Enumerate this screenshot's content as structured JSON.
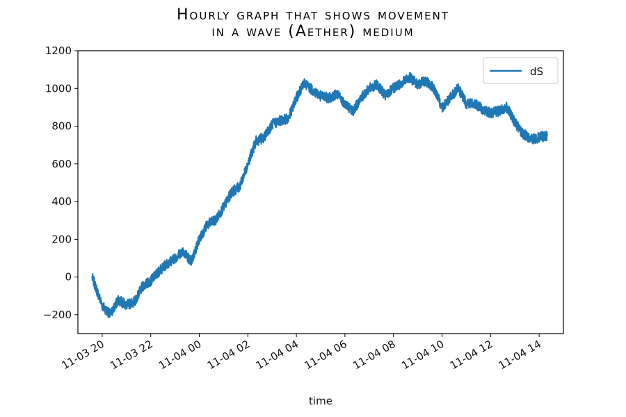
{
  "chart_data": {
    "type": "line",
    "title_lines": [
      "Hourly graph that shows movement",
      "in a wave (Aether) medium"
    ],
    "xlabel": "time",
    "ylabel": "",
    "x_tick_labels": [
      "11-03 20",
      "11-03 22",
      "11-04 00",
      "11-04 02",
      "11-04 04",
      "11-04 06",
      "11-04 08",
      "11-04 10",
      "11-04 12",
      "11-04 14"
    ],
    "x_range": [
      "11-03 19:00",
      "11-04 15:00"
    ],
    "ylim": [
      -300,
      1200
    ],
    "y_ticks": [
      -200,
      0,
      200,
      400,
      600,
      800,
      1000,
      1200
    ],
    "legend_position": "top-right",
    "grid": false,
    "color": "#1f77b4",
    "series": [
      {
        "name": "dS",
        "x": [
          "11-03 19:35",
          "11-03 20:00",
          "11-03 20:20",
          "11-03 20:40",
          "11-03 21:00",
          "11-03 21:20",
          "11-03 21:40",
          "11-03 22:00",
          "11-03 22:20",
          "11-03 22:40",
          "11-03 23:00",
          "11-03 23:20",
          "11-03 23:40",
          "11-04 00:00",
          "11-04 00:20",
          "11-04 00:40",
          "11-04 01:00",
          "11-04 01:20",
          "11-04 01:40",
          "11-04 02:00",
          "11-04 02:20",
          "11-04 02:40",
          "11-04 03:00",
          "11-04 03:20",
          "11-04 03:40",
          "11-04 04:00",
          "11-04 04:20",
          "11-04 04:40",
          "11-04 05:00",
          "11-04 05:20",
          "11-04 05:40",
          "11-04 06:00",
          "11-04 06:20",
          "11-04 06:40",
          "11-04 07:00",
          "11-04 07:20",
          "11-04 07:40",
          "11-04 08:00",
          "11-04 08:20",
          "11-04 08:40",
          "11-04 09:00",
          "11-04 09:20",
          "11-04 09:40",
          "11-04 10:00",
          "11-04 10:20",
          "11-04 10:40",
          "11-04 11:00",
          "11-04 11:20",
          "11-04 11:40",
          "11-04 12:00",
          "11-04 12:20",
          "11-04 12:40",
          "11-04 13:00",
          "11-04 13:20",
          "11-04 13:40",
          "11-04 14:00",
          "11-04 14:20"
        ],
        "values": [
          0,
          -150,
          -200,
          -120,
          -150,
          -130,
          -50,
          -20,
          30,
          70,
          100,
          140,
          80,
          200,
          280,
          300,
          370,
          450,
          480,
          600,
          720,
          740,
          810,
          830,
          840,
          950,
          1030,
          990,
          960,
          950,
          970,
          920,
          880,
          950,
          1000,
          1020,
          960,
          1000,
          1030,
          1060,
          1020,
          1040,
          1000,
          900,
          950,
          1000,
          920,
          920,
          890,
          870,
          880,
          900,
          820,
          760,
          730,
          740,
          750
        ]
      }
    ]
  }
}
